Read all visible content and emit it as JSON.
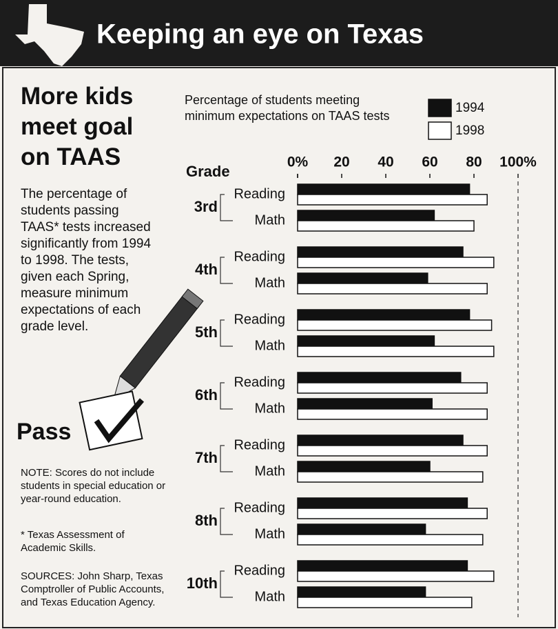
{
  "header": {
    "title": "Keeping an eye on Texas"
  },
  "sidebar": {
    "headline": "More kids meet goal on TAAS",
    "body": "The percentage of students passing TAAS* tests increased significantly from 1994 to 1998. The tests, given each Spring, measure minimum expectations of each grade level.",
    "stamp": "Pass",
    "note": "NOTE: Scores do not include students in special education or year-round education.",
    "footnote": "* Texas Assessment of Academic Skills.",
    "sources": "SOURCES: John Sharp, Texas Comptroller of Public Accounts, and Texas Education Agency."
  },
  "chart_data": {
    "type": "hbar",
    "subtitle": "Percentage of students meeting minimum expectations on TAAS tests",
    "group_label": "Grade",
    "groups": [
      "3rd",
      "4th",
      "5th",
      "6th",
      "7th",
      "8th",
      "10th"
    ],
    "categories": [
      "Reading",
      "Math",
      "Reading",
      "Math",
      "Reading",
      "Math",
      "Reading",
      "Math",
      "Reading",
      "Math",
      "Reading",
      "Math",
      "Reading",
      "Math"
    ],
    "series": [
      {
        "name": "1994",
        "color": "#111111",
        "values": [
          78,
          62,
          75,
          59,
          78,
          62,
          74,
          61,
          75,
          60,
          77,
          58,
          77,
          58
        ]
      },
      {
        "name": "1998",
        "color": "#ffffff",
        "values": [
          86,
          80,
          89,
          86,
          88,
          89,
          86,
          86,
          86,
          84,
          86,
          84,
          89,
          79
        ]
      }
    ],
    "xlim": [
      0,
      100
    ],
    "xticks": [
      {
        "value": 0,
        "label": "0%"
      },
      20,
      40,
      60,
      80,
      {
        "value": 100,
        "label": "100%"
      }
    ]
  }
}
